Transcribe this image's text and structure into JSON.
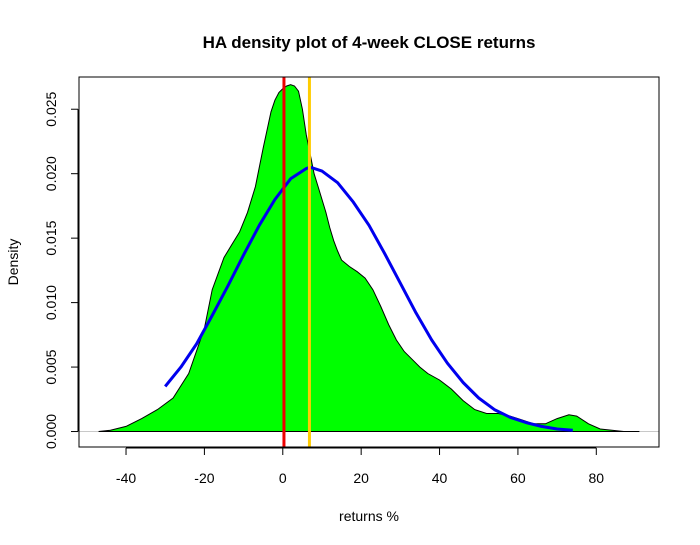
{
  "chart_data": {
    "type": "area",
    "title": "HA density plot of 4-week CLOSE returns",
    "xlabel": "returns %",
    "ylabel": "Density",
    "xlim": [
      -52,
      96
    ],
    "ylim": [
      -0.0012,
      0.0275
    ],
    "x_ticks": [
      -40,
      -20,
      0,
      20,
      40,
      60,
      80
    ],
    "y_ticks": [
      0.0,
      0.005,
      0.01,
      0.015,
      0.02,
      0.025
    ],
    "y_tick_labels": [
      "0.000",
      "0.005",
      "0.010",
      "0.015",
      "0.020",
      "0.025"
    ],
    "grid": false,
    "legend": "none",
    "series": [
      {
        "kind": "density-area",
        "color": "#00ff00",
        "x": [
          -47,
          -44,
          -40,
          -36,
          -32,
          -28,
          -24,
          -20,
          -18,
          -15,
          -13,
          -11,
          -9,
          -7,
          -5,
          -3,
          -2,
          -1,
          0,
          1,
          2,
          3,
          4,
          5,
          6,
          7,
          8,
          9,
          10,
          11,
          12,
          13,
          14,
          15,
          17,
          19,
          21,
          23,
          25,
          27,
          29,
          31,
          33,
          35,
          37,
          40,
          43,
          46,
          49,
          52,
          55,
          58,
          61,
          64,
          67,
          70,
          73,
          75,
          78,
          81,
          84,
          87,
          91
        ],
        "y": [
          0.0,
          0.0001,
          0.0004,
          0.001,
          0.0017,
          0.0026,
          0.0045,
          0.008,
          0.011,
          0.0135,
          0.0145,
          0.0155,
          0.017,
          0.019,
          0.022,
          0.0248,
          0.0257,
          0.0263,
          0.0266,
          0.0268,
          0.0269,
          0.0268,
          0.0264,
          0.025,
          0.023,
          0.0215,
          0.02,
          0.019,
          0.018,
          0.017,
          0.0158,
          0.0148,
          0.014,
          0.0133,
          0.0128,
          0.0124,
          0.0119,
          0.011,
          0.0097,
          0.0083,
          0.0071,
          0.0062,
          0.0056,
          0.005,
          0.0045,
          0.004,
          0.0033,
          0.0024,
          0.0017,
          0.0014,
          0.0014,
          0.0012,
          0.0009,
          0.0006,
          0.0006,
          0.001,
          0.0013,
          0.0012,
          0.0006,
          0.0002,
          0.0001,
          0.0,
          0.0
        ]
      },
      {
        "kind": "normal-curve",
        "color": "#0000ee",
        "x": [
          -30,
          -26,
          -22,
          -18,
          -14,
          -10,
          -6,
          -2,
          2,
          6,
          7,
          10,
          14,
          18,
          22,
          26,
          30,
          34,
          38,
          42,
          46,
          50,
          54,
          58,
          62,
          66,
          70,
          74
        ],
        "y": [
          0.0035,
          0.005,
          0.0068,
          0.009,
          0.0113,
          0.0137,
          0.016,
          0.018,
          0.0196,
          0.0204,
          0.0205,
          0.0202,
          0.0193,
          0.0178,
          0.016,
          0.0138,
          0.0115,
          0.0092,
          0.0071,
          0.0053,
          0.0038,
          0.0026,
          0.0017,
          0.0011,
          0.0007,
          0.0004,
          0.0002,
          0.0001
        ]
      }
    ],
    "vlines": [
      {
        "x": 0.3,
        "color": "#ee0000"
      },
      {
        "x": 6.8,
        "color": "#ffcc00"
      }
    ],
    "hlines": [
      {
        "y": 0,
        "color": "#c8c8c8"
      }
    ]
  }
}
